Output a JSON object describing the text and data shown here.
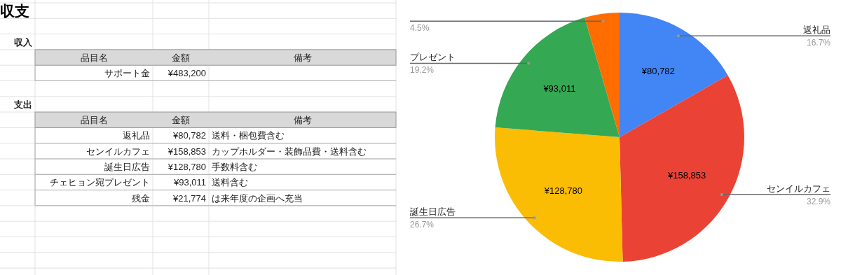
{
  "chart_data": [
    {
      "type": "other",
      "title": "収支",
      "annotations": [
        "収入",
        "品目名",
        "金額",
        "備考",
        "サポート金",
        "¥483,200",
        "支出",
        "品目名",
        "金額",
        "備考",
        "返礼品",
        "¥80,782",
        "送料・梱包費含む",
        "センイルカフェ",
        "¥158,853",
        "カップホルダー・装飾品費・送料含む",
        "誕生日広告",
        "¥128,780",
        "手数料含む",
        "チェヒョン宛プレゼント",
        "¥93,011",
        "送料含む",
        "残金",
        "¥21,774",
        "は来年度の企画へ充当"
      ]
    },
    {
      "type": "pie",
      "categories": [
        "返礼品",
        "センイルカフェ",
        "誕生日広告",
        "プレゼント",
        null
      ],
      "values": [
        80782,
        158853,
        128780,
        93011,
        21774
      ],
      "colors": [
        "#4285f4",
        "#ea4335",
        "#fbbc04",
        "#34a853",
        "#ff6d01"
      ],
      "value_labels": [
        "¥80,782",
        "¥158,853",
        "¥128,780",
        "¥93,011",
        null
      ],
      "annotations": [
        "16.7%",
        "32.9%",
        "26.7%",
        "19.2%",
        "4.5%"
      ]
    }
  ]
}
